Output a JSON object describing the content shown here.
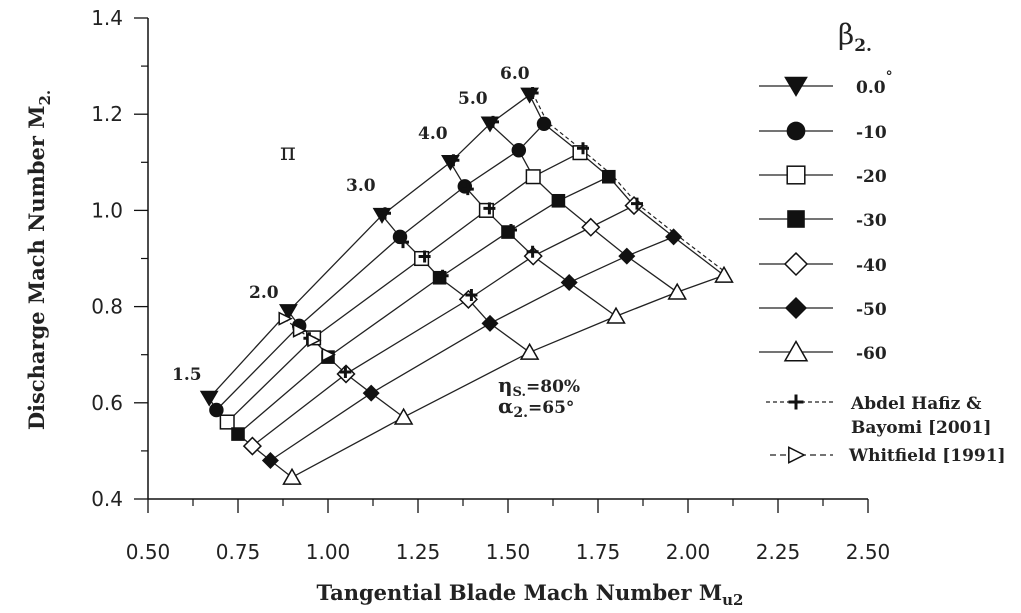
{
  "chart_data": {
    "type": "line",
    "xlabel": "Tangential Blade Mach Number M",
    "xlabel_sub": "u2",
    "ylabel": "Discharge Mach Number M",
    "ylabel_sub": "2.",
    "xlim": [
      0.5,
      2.5
    ],
    "ylim": [
      0.4,
      1.4
    ],
    "xticks": [
      "0.50",
      "0.75",
      "1.00",
      "1.25",
      "1.50",
      "1.75",
      "2.00",
      "2.25",
      "2.50"
    ],
    "yticks": [
      "0.4",
      "0.6",
      "0.8",
      "1.0",
      "1.2",
      "1.4"
    ],
    "grid": false,
    "legend_position": "right",
    "legend_title": "β",
    "legend_title_sub": "2.",
    "pi_symbol": "π",
    "pressure_ratios": [
      "1.5",
      "2.0",
      "3.0",
      "4.0",
      "5.0",
      "6.0"
    ],
    "conditions": {
      "eta_symbol": "η",
      "eta_sub": "S.",
      "eta_value": "=80%",
      "alpha_symbol": "α",
      "alpha_sub": "2.",
      "alpha_value": "=65°"
    },
    "series": [
      {
        "name": "0.0°",
        "marker": "triangle-down",
        "x": [
          0.67,
          0.89,
          1.15,
          1.34,
          1.45,
          1.56
        ],
        "y": [
          0.61,
          0.79,
          0.99,
          1.1,
          1.18,
          1.24
        ]
      },
      {
        "name": "-10",
        "marker": "circle",
        "x": [
          0.69,
          0.92,
          1.2,
          1.38,
          1.53,
          1.6
        ],
        "y": [
          0.585,
          0.76,
          0.945,
          1.05,
          1.125,
          1.18
        ]
      },
      {
        "name": "-20",
        "marker": "square-open",
        "x": [
          0.72,
          0.96,
          1.26,
          1.44,
          1.57,
          1.7
        ],
        "y": [
          0.56,
          0.735,
          0.9,
          1.0,
          1.07,
          1.12
        ]
      },
      {
        "name": "-30",
        "marker": "square",
        "x": [
          0.75,
          1.0,
          1.31,
          1.5,
          1.64,
          1.78
        ],
        "y": [
          0.535,
          0.695,
          0.86,
          0.955,
          1.02,
          1.07
        ]
      },
      {
        "name": "-40",
        "marker": "diamond-open",
        "x": [
          0.79,
          1.05,
          1.39,
          1.57,
          1.73,
          1.85
        ],
        "y": [
          0.51,
          0.66,
          0.815,
          0.905,
          0.965,
          1.01
        ]
      },
      {
        "name": "-50",
        "marker": "diamond",
        "x": [
          0.84,
          1.12,
          1.45,
          1.67,
          1.83,
          1.96
        ],
        "y": [
          0.48,
          0.62,
          0.765,
          0.85,
          0.905,
          0.945
        ]
      },
      {
        "name": "-60",
        "marker": "triangle-up-open",
        "x": [
          0.9,
          1.21,
          1.56,
          1.8,
          1.97,
          2.1
        ],
        "y": [
          0.445,
          0.57,
          0.705,
          0.78,
          0.83,
          0.865
        ]
      }
    ],
    "reference_series": [
      {
        "name": "Abdel Hafiz &",
        "name_line2": "Bayomi [2001]",
        "marker": "plus",
        "line": "dashed",
        "x": [
          1.15,
          1.34,
          1.45,
          1.56,
          0.91,
          1.2,
          1.38,
          1.7,
          0.94,
          1.26,
          1.44,
          1.5,
          1.04,
          1.31,
          1.39,
          1.56,
          1.85
        ],
        "y": [
          0.99,
          1.1,
          1.18,
          1.24,
          0.75,
          0.93,
          1.04,
          1.125,
          0.73,
          0.9,
          1.0,
          0.955,
          0.66,
          0.86,
          0.82,
          0.91,
          1.01
        ]
      },
      {
        "name": "Whitfield [1991]",
        "marker": "triangle-right-open",
        "line": "dashed",
        "x": [
          0.88,
          0.92,
          0.96,
          1.0
        ],
        "y": [
          0.775,
          0.75,
          0.73,
          0.7
        ]
      }
    ]
  }
}
